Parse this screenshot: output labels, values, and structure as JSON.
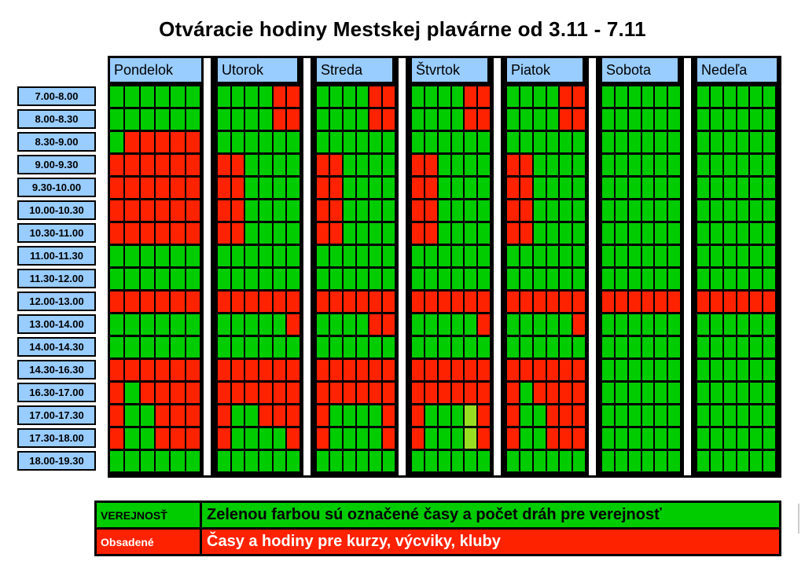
{
  "title": "Otváracie hodiny Mestskej plavárne od 3.11 - 7.11",
  "time_slots": [
    "7.00-8.00",
    "8.00-8.30",
    "8.30-9.00",
    "9.00-9.30",
    "9.30-10.00",
    "10.00-10.30",
    "10.30-11.00",
    "11.00-11.30",
    "11.30-12.00",
    "12.00-13.00",
    "13.00-14.00",
    "14.00-14.30",
    "14.30-16.30",
    "16.30-17.00",
    "17.00-17.30",
    "17.30-18.00",
    "18.00-19.30"
  ],
  "colors": {
    "free": "#00cc00",
    "busy": "#ff2200",
    "light": "#99dd22",
    "header": "#99ccff"
  },
  "days": [
    {
      "name": "Pondelok",
      "grid": [
        "GGGGGG",
        "GGGGGG",
        "GRRRRR",
        "RRRRRR",
        "RRRRRR",
        "RRRRRR",
        "RRRRRR",
        "GGGGGG",
        "GGGGGG",
        "RRRRRR",
        "GGGGGG",
        "GGGGGG",
        "RRRRRR",
        "RGRRRR",
        "RGGRRR",
        "RGGRRR",
        "GGGGGG"
      ]
    },
    {
      "name": "Utorok",
      "grid": [
        "GGGGRR",
        "GGGGRR",
        "GGGGGG",
        "RRGGGG",
        "RRGGGG",
        "RRGGGG",
        "RRGGGG",
        "GGGGGG",
        "GGGGGG",
        "RRRRRR",
        "GGGGGR",
        "GGGGGG",
        "RRRRRR",
        "RRRRRR",
        "RGGRRR",
        "RGGGGR",
        "GGGGGG"
      ]
    },
    {
      "name": "Streda",
      "grid": [
        "GGGGRR",
        "GGGGRR",
        "GGGGGG",
        "RRGGGG",
        "RRGGGG",
        "RRGGGG",
        "RRGGGG",
        "GGGGGG",
        "GGGGGG",
        "RRRRRR",
        "GGGGRR",
        "GGGGGG",
        "RRRRRR",
        "RRRRRR",
        "RGGGGR",
        "RGGGGR",
        "GGGGGG"
      ]
    },
    {
      "name": "Štvrtok",
      "grid": [
        "GGGGRR",
        "GGGGRR",
        "GGGGGG",
        "RRGGGG",
        "RRGGGG",
        "RRGGGG",
        "RRGGGG",
        "GGGGGG",
        "GGGGGG",
        "RRRRRR",
        "GGGGGR",
        "GGGGGG",
        "RRRRRR",
        "RRRRRR",
        "RGGGLR",
        "RGGGLR",
        "GGGGGG"
      ]
    },
    {
      "name": "Piatok",
      "grid": [
        "GGGGRR",
        "GGGGRR",
        "GGGGGG",
        "RRGGGG",
        "RRGGGG",
        "RRGGGG",
        "RRGGGG",
        "GGGGGG",
        "GGGGGG",
        "RRRRRR",
        "GGGGGR",
        "GGGGGG",
        "RRRRRR",
        "RGRRRR",
        "RGGRRR",
        "RGGRRR",
        "GGGGGG"
      ]
    },
    {
      "name": "Sobota",
      "grid": [
        "GGGGGG",
        "GGGGGG",
        "GGGGGG",
        "GGGGGG",
        "GGGGGG",
        "GGGGGG",
        "GGGGGG",
        "GGGGGG",
        "GGGGGG",
        "RRRRRR",
        "GGGGGG",
        "GGGGGG",
        "GGGGGG",
        "GGGGGG",
        "GGGGGG",
        "GGGGGG",
        "GGGGGG"
      ]
    },
    {
      "name": "Nedeľa",
      "grid": [
        "GGGGGG",
        "GGGGGG",
        "GGGGGG",
        "GGGGGG",
        "GGGGGG",
        "GGGGGG",
        "GGGGGG",
        "GGGGGG",
        "GGGGGG",
        "RRRRRR",
        "GGGGGG",
        "GGGGGG",
        "GGGGGG",
        "GGGGGG",
        "GGGGGG",
        "GGGGGG",
        "GGGGGG"
      ]
    }
  ],
  "legend": {
    "public_label": "VEREJNOSŤ",
    "public_text": "Zelenou farbou sú označené časy a počet dráh pre verejnosť",
    "busy_label": "Obsadené",
    "busy_text": "Časy a hodiny pre kurzy, výcviky, kluby"
  }
}
